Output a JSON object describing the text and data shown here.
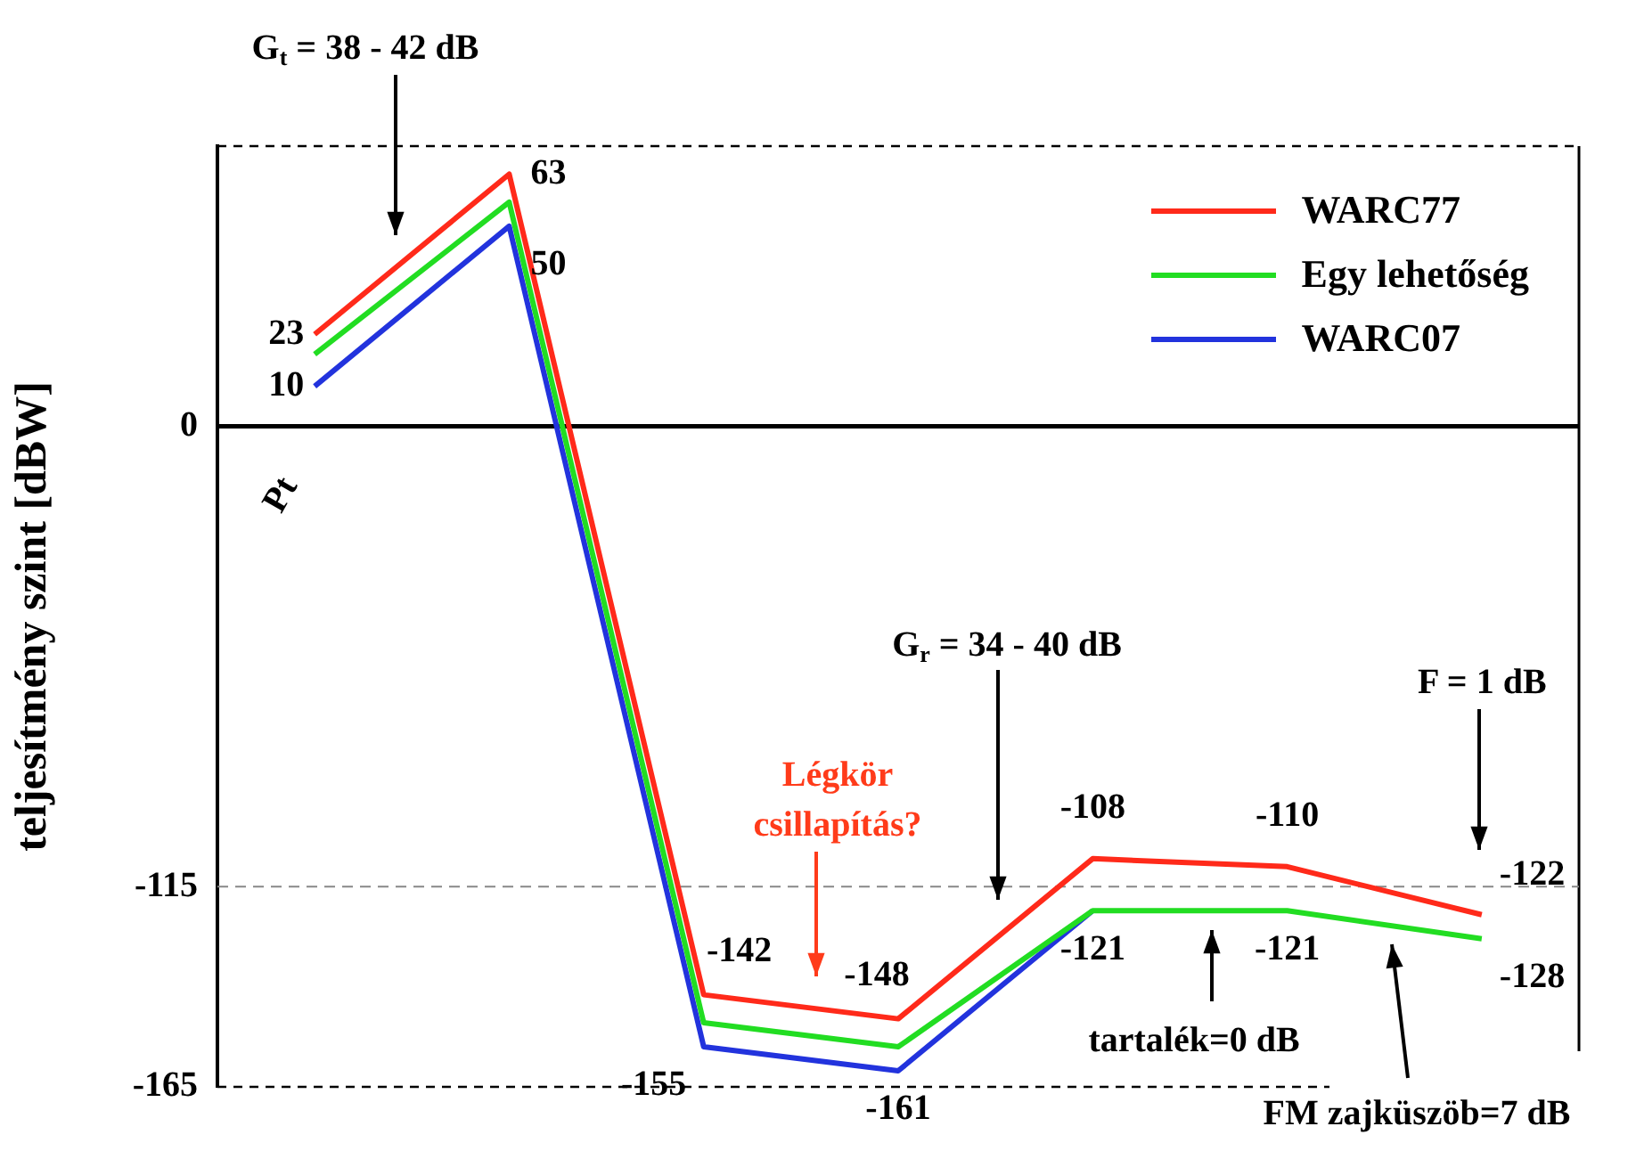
{
  "chart_data": {
    "type": "line",
    "ylabel": "teljesítmény szint [dBW]",
    "categories": [
      null,
      null,
      null,
      null,
      null,
      null,
      null
    ],
    "series": [
      {
        "name": "WARC77",
        "color": "#ff2a1a",
        "values": [
          23,
          63,
          -142,
          -148,
          -108,
          -110,
          -122
        ],
        "value_labels": [
          "23",
          "63",
          "-142",
          "-148",
          "-108",
          "-110",
          "-122"
        ]
      },
      {
        "name": "Egy lehetőség",
        "color": "#22dd22",
        "values": [
          18,
          56,
          -149,
          -155,
          -121,
          -121,
          -128
        ],
        "value_labels": [
          null,
          null,
          null,
          null,
          "-121",
          "-121",
          "-128"
        ]
      },
      {
        "name": "WARC07",
        "color": "#2233dd",
        "values": [
          10,
          50,
          -155,
          -161,
          -121,
          null,
          null
        ],
        "value_labels": [
          "10",
          "50",
          "-155",
          "-161",
          null,
          null,
          null
        ]
      }
    ],
    "ylim": [
      -165,
      70
    ],
    "yticks": [
      0,
      -115,
      -165
    ],
    "grid": false,
    "legend": "top right",
    "marker": "none",
    "line_style": "solid",
    "ref_lines": [
      {
        "axis": "y",
        "value": 0,
        "color": "#000000",
        "line_style": "solid"
      },
      {
        "axis": "y",
        "value": -115,
        "color": "#888888",
        "line_style": "dashed"
      }
    ],
    "annotations": [
      "Pt",
      "G$_{t}$ = 38 - 42 dB",
      "Légkör csillapítás?",
      "G$_{r}$ = 34 - 40 dB",
      "F = 1 dB",
      "tartalék=0 dB",
      "FM zajküszöb=7 dB"
    ]
  }
}
